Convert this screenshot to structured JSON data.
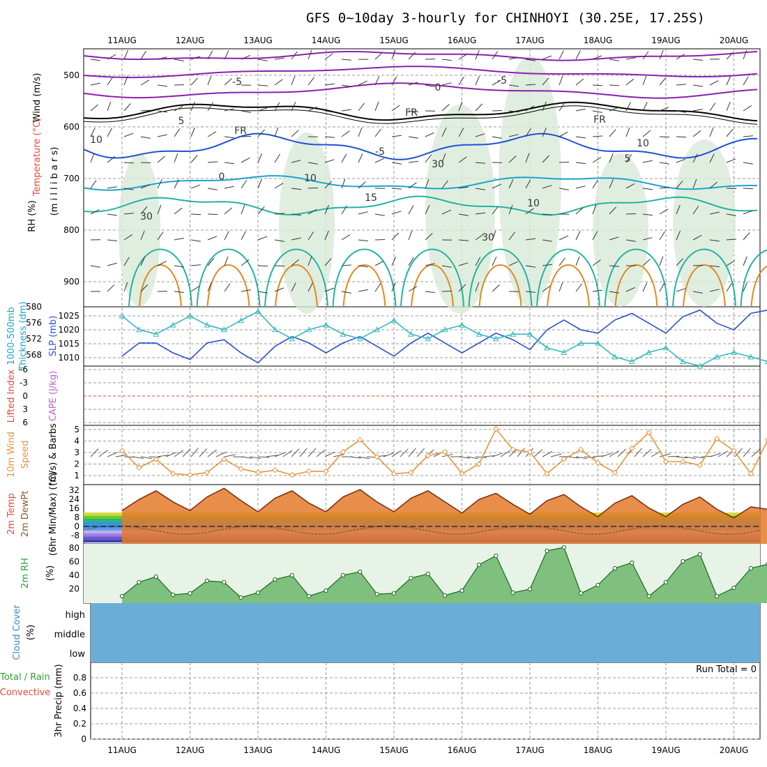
{
  "title": "GFS 0~10day 3-hourly for CHINHOYI (30.25E, 17.25S)",
  "dates": [
    "11AUG",
    "12AUG",
    "13AUG",
    "14AUG",
    "15AUG",
    "16AUG",
    "17AUG",
    "18AUG",
    "19AUG",
    "20AUG"
  ],
  "colors": {
    "purple": "#8a1fb0",
    "blue": "#1f4fd6",
    "cyan": "#1aa5cf",
    "teal": "#22b3a0",
    "orange": "#e08a1e",
    "slp": "#2a4fd0",
    "thick": "#35b8c2",
    "wind10": "#e6943a",
    "rh": "#2ea02e",
    "cloud": "#6aaed8"
  },
  "panels": {
    "upper": {
      "ylabel_a": "Wind (m/s)",
      "ylabel_b": "Temperature (°C)",
      "ylabel_c": "RH (%)",
      "ylabel_d": "(m i l l i b a r s)",
      "yticks": [
        "500",
        "600",
        "700",
        "800",
        "900"
      ],
      "contour_labels": [
        "-5",
        "-5",
        "5",
        "-5",
        "5",
        "10",
        "15",
        "10",
        "FR",
        "FR",
        "FR",
        "0",
        "10",
        "10",
        "30",
        "30",
        "30",
        "0"
      ]
    },
    "slp": {
      "ylabel_left": "1000-500mb",
      "ylabel_left2": "Thickness (dm)",
      "ylabel_right": "SLP (mb)",
      "left_ticks": [
        "580",
        "576",
        "572",
        "568"
      ],
      "right_ticks": [
        "1025",
        "1020",
        "1015",
        "1010"
      ]
    },
    "cape": {
      "ylabel_left": "Lifted Index",
      "ylabel_right": "CAPE (J/kg)",
      "ticks": [
        "-6",
        "-3",
        "0",
        "3",
        "6"
      ]
    },
    "wind10": {
      "ylabel_a": "10m Wind",
      "ylabel_b": "Speed",
      "ylabel_c": "(m/s) & Barbs",
      "ticks": [
        "5",
        "4",
        "3",
        "2",
        "1"
      ]
    },
    "temp": {
      "ylabel_a": "2m Temp",
      "ylabel_b": "2m DewPt",
      "ylabel_c": "(6hr Min/Max) (°C)",
      "ticks": [
        "32",
        "24",
        "16",
        "8",
        "0",
        "-8"
      ]
    },
    "rh": {
      "ylabel_a": "2m RH",
      "ylabel_b": "(%)",
      "ticks": [
        "80",
        "60",
        "40",
        "20"
      ]
    },
    "cloud": {
      "ylabel_a": "Cloud Cover",
      "ylabel_b": "(%)",
      "levels": [
        "high",
        "middle",
        "low"
      ]
    },
    "precip": {
      "ylabel_a": "Total / Rain",
      "ylabel_b": "Convective",
      "ylabel_c": "3hr Precip (mm)",
      "ticks": [
        "0.8",
        "0.6",
        "0.4",
        "0.2",
        "0"
      ],
      "run_total": "Run Total = 0"
    }
  },
  "chart_data": [
    {
      "type": "line",
      "title": "1000-500mb Thickness (dm) and SLP (mb)",
      "series": [
        {
          "name": "SLP (mb)",
          "x_days": [
            0,
            0.25,
            0.5,
            0.75,
            1,
            1.25,
            1.5,
            1.75,
            2,
            2.25,
            2.5,
            2.75,
            3,
            3.25,
            3.5,
            3.75,
            4,
            4.25,
            4.5,
            4.75,
            5,
            5.25,
            5.5,
            5.75,
            6,
            6.25,
            6.5,
            6.75,
            7,
            7.25,
            7.5,
            7.75,
            8,
            8.25,
            8.5,
            8.75,
            9,
            9.25,
            9.5,
            9.75
          ],
          "values": [
            1012,
            1016,
            1016,
            1013,
            1011,
            1016,
            1017,
            1013,
            1010,
            1015,
            1018,
            1016,
            1013,
            1016,
            1018,
            1015,
            1012,
            1016,
            1019,
            1016,
            1013,
            1016,
            1019,
            1017,
            1014,
            1020,
            1023,
            1020,
            1019,
            1023,
            1025,
            1022,
            1019,
            1024,
            1026,
            1022,
            1020,
            1025,
            1026,
            1024
          ]
        },
        {
          "name": "1000-500mb Thickness (dm)",
          "x_days": [
            0,
            0.25,
            0.5,
            0.75,
            1,
            1.25,
            1.5,
            1.75,
            2,
            2.25,
            2.5,
            2.75,
            3,
            3.25,
            3.5,
            3.75,
            4,
            4.25,
            4.5,
            4.75,
            5,
            5.25,
            5.5,
            5.75,
            6,
            6.25,
            6.5,
            6.75,
            7,
            7.25,
            7.5,
            7.75,
            8,
            8.25,
            8.5,
            8.75,
            9,
            9.25,
            9.5,
            9.75
          ],
          "values": [
            578,
            575,
            574,
            576,
            578,
            576,
            575,
            577,
            579,
            575,
            573,
            575,
            576,
            574,
            573,
            575,
            577,
            574,
            573,
            575,
            576,
            574,
            573,
            574,
            574,
            571,
            570,
            572,
            572,
            569,
            568,
            570,
            571,
            568,
            567,
            569,
            570,
            569,
            568,
            570
          ]
        }
      ],
      "ylim_left": [
        567,
        580
      ],
      "ylim_right": [
        1009,
        1027
      ]
    },
    {
      "type": "line",
      "title": "10m Wind Speed (m/s)",
      "ylim": [
        0,
        5
      ],
      "x_days": [
        0,
        0.25,
        0.5,
        0.75,
        1,
        1.25,
        1.5,
        1.75,
        2,
        2.25,
        2.5,
        2.75,
        3,
        3.25,
        3.5,
        3.75,
        4,
        4.25,
        4.5,
        4.75,
        5,
        5.25,
        5.5,
        5.75,
        6,
        6.25,
        6.5,
        6.75,
        7,
        7.25,
        7.5,
        7.75,
        8,
        8.25,
        8.5,
        8.75,
        9,
        9.25,
        9.5,
        9.75
      ],
      "values": [
        3.1,
        1.7,
        2.4,
        1.2,
        1.1,
        1.3,
        2.4,
        1.6,
        1.3,
        1.5,
        1.1,
        1.4,
        1.4,
        3.0,
        4.0,
        2.6,
        1.2,
        1.3,
        2.7,
        3.0,
        1.2,
        2.0,
        4.9,
        3.2,
        3.0,
        1.2,
        2.4,
        3.2,
        2.1,
        1.3,
        3.3,
        4.6,
        2.2,
        2.2,
        1.9,
        4.1,
        3.1,
        1.2,
        4.0,
        0.9
      ]
    },
    {
      "type": "area",
      "title": "2m Temp (°C)",
      "ylim": [
        -12,
        36
      ],
      "x_days": [
        0,
        0.25,
        0.5,
        0.75,
        1,
        1.25,
        1.5,
        1.75,
        2,
        2.25,
        2.5,
        2.75,
        3,
        3.25,
        3.5,
        3.75,
        4,
        4.25,
        4.5,
        4.75,
        5,
        5.25,
        5.5,
        5.75,
        6,
        6.25,
        6.5,
        6.75,
        7,
        7.25,
        7.5,
        7.75,
        8,
        8.25,
        8.5,
        8.75,
        9,
        9.25,
        9.5,
        9.75
      ],
      "values": [
        15,
        24,
        31,
        22,
        15,
        26,
        33,
        23,
        14,
        25,
        31,
        21,
        14,
        26,
        32,
        22,
        14,
        25,
        31,
        22,
        13,
        24,
        29,
        20,
        12,
        23,
        28,
        18,
        10,
        21,
        27,
        17,
        10,
        20,
        26,
        16,
        9,
        18,
        16,
        17
      ]
    },
    {
      "type": "area",
      "title": "2m RH (%)",
      "ylim": [
        0,
        85
      ],
      "x_days": [
        0,
        0.25,
        0.5,
        0.75,
        1,
        1.25,
        1.5,
        1.75,
        2,
        2.25,
        2.5,
        2.75,
        3,
        3.25,
        3.5,
        3.75,
        4,
        4.25,
        4.5,
        4.75,
        5,
        5.25,
        5.5,
        5.75,
        6,
        6.25,
        6.5,
        6.75,
        7,
        7.25,
        7.5,
        7.75,
        8,
        8.25,
        8.5,
        8.75,
        9,
        9.25,
        9.5,
        9.75
      ],
      "values": [
        10,
        30,
        38,
        12,
        14,
        32,
        30,
        8,
        15,
        34,
        40,
        10,
        18,
        40,
        45,
        13,
        14,
        36,
        42,
        11,
        18,
        55,
        68,
        15,
        20,
        75,
        80,
        14,
        26,
        50,
        58,
        10,
        30,
        60,
        70,
        10,
        22,
        50,
        56,
        32
      ]
    },
    {
      "type": "bar",
      "title": "3hr Precip (mm)",
      "ylim": [
        0,
        1
      ],
      "values": []
    }
  ]
}
